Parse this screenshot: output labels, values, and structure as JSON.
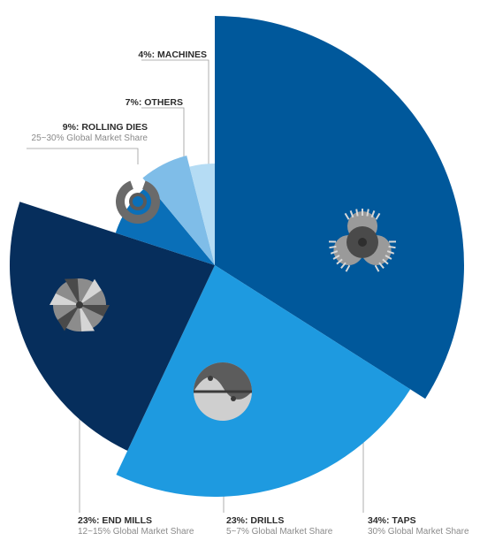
{
  "chart_data": {
    "type": "pie",
    "variant": "polar-area",
    "start_angle_deg": 0,
    "slices": [
      {
        "key": "taps",
        "label": "34%: TAPS",
        "value": 34,
        "share": "30% Global Market Share",
        "color": "#00589b",
        "icon": "tap-icon"
      },
      {
        "key": "drills",
        "label": "23%: DRILLS",
        "value": 23,
        "share": "5~7% Global Market Share",
        "color": "#1e9ae0",
        "icon": "drill-icon"
      },
      {
        "key": "end_mills",
        "label": "23%: END MILLS",
        "value": 23,
        "share": "12~15% Global Market Share",
        "color": "#062e5c",
        "icon": "end-mill-icon"
      },
      {
        "key": "rolling_dies",
        "label": "9%: ROLLING DIES",
        "value": 9,
        "share": "25~30% Global Market Share",
        "color": "#0a6fb8",
        "icon": "rolling-die-icon"
      },
      {
        "key": "others",
        "label": "7%: OTHERS",
        "value": 7,
        "share": "",
        "color": "#7fbde8",
        "icon": ""
      },
      {
        "key": "machines",
        "label": "4%: MACHINES",
        "value": 4,
        "share": "",
        "color": "#b5dcf4",
        "icon": ""
      }
    ],
    "title": "",
    "legend": "none"
  }
}
